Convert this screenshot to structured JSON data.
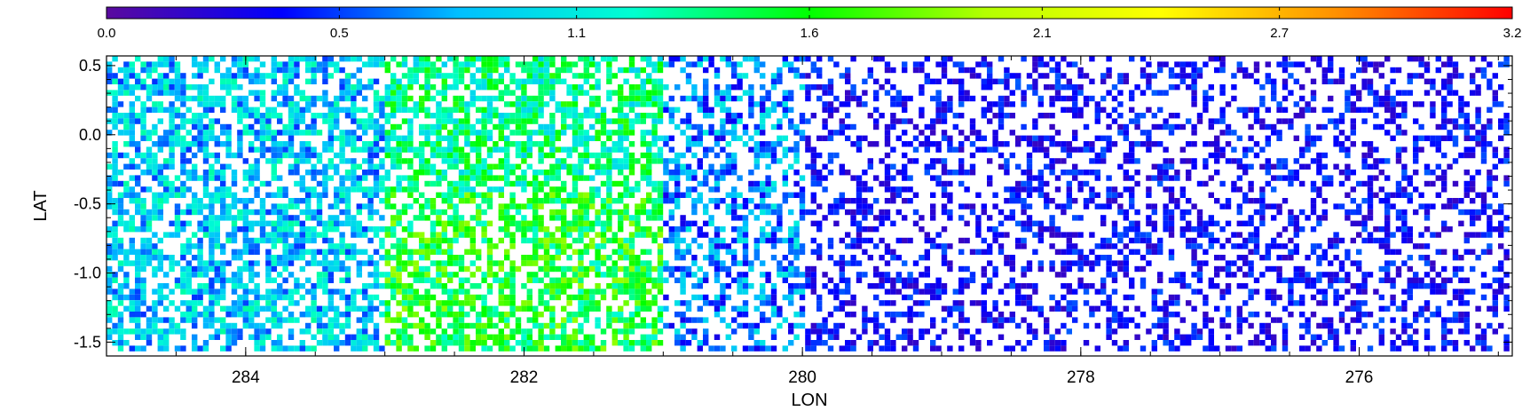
{
  "chart_data": {
    "type": "heatmap",
    "title": "",
    "xlabel": "LON",
    "ylabel": "LAT",
    "xlim": [
      285.0,
      274.9
    ],
    "ylim": [
      -1.6,
      0.57
    ],
    "x_reversed": true,
    "xticks": [
      284,
      282,
      280,
      278,
      276
    ],
    "xtick_labels": [
      "284",
      "282",
      "280",
      "278",
      "276"
    ],
    "yticks": [
      0.5,
      0.0,
      -0.5,
      -1.0,
      -1.5
    ],
    "ytick_labels": [
      "0.5",
      "0.0",
      "-0.5",
      "-1.0",
      "-1.5"
    ],
    "colorbar": {
      "min": 0.0,
      "max": 3.2,
      "tick_values": [
        0.0,
        0.53,
        1.07,
        1.6,
        2.13,
        2.67,
        3.2
      ],
      "tick_labels": [
        "0.0",
        "0.5",
        "1.1",
        "1.6",
        "2.1",
        "2.7",
        "3.2"
      ],
      "colormap": "rainbow",
      "colors": [
        "#5a0a9e",
        "#0000ff",
        "#00bfff",
        "#00ffd0",
        "#00ff00",
        "#b4ff00",
        "#ffff00",
        "#ff9000",
        "#ff0000"
      ]
    },
    "grid": false,
    "regions": [
      {
        "lon": [
          285.0,
          283.0
        ],
        "lat": [
          -1.6,
          0.57
        ],
        "dominant_value": 0.9,
        "note": "cyan/blue, dense"
      },
      {
        "lon": [
          283.0,
          281.0
        ],
        "lat": [
          -1.6,
          0.57
        ],
        "dominant_value": 1.3,
        "note": "cyan/green, dense"
      },
      {
        "lon": [
          281.0,
          280.0
        ],
        "lat": [
          -1.6,
          0.57
        ],
        "dominant_value": 0.7,
        "note": "blue/cyan, moderate density"
      },
      {
        "lon": [
          280.0,
          274.9
        ],
        "lat": [
          -1.6,
          0.57
        ],
        "dominant_value": 0.3,
        "note": "blue/purple, sparse"
      }
    ]
  }
}
